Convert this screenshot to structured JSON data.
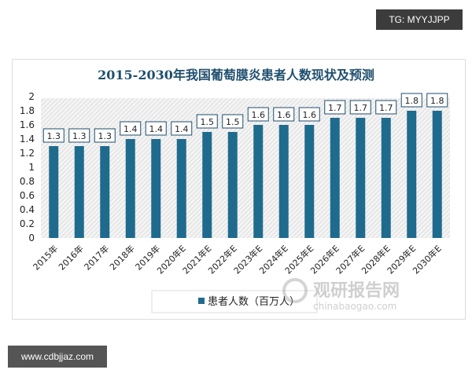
{
  "badge_top": "TG: MYYJJPP",
  "badge_bottom": "www.cdbjjaz.com",
  "watermark": {
    "name": "观研报告网",
    "url": "chinabaogao.com"
  },
  "colors": {
    "bar": "#1f6b8e",
    "title": "#1f4e6e"
  },
  "chart_data": {
    "type": "bar",
    "title": "2015-2030年我国葡萄膜炎患者人数现状及预测",
    "categories": [
      "2015年",
      "2016年",
      "2017年",
      "2018年",
      "2019年",
      "2020年E",
      "2021年E",
      "2022年E",
      "2023年E",
      "2024年E",
      "2025年E",
      "2026年E",
      "2027年E",
      "2028年E",
      "2029年E",
      "2030年E"
    ],
    "series": [
      {
        "name": "患者人数（百万人）",
        "values": [
          1.3,
          1.3,
          1.3,
          1.4,
          1.4,
          1.4,
          1.5,
          1.5,
          1.6,
          1.6,
          1.6,
          1.7,
          1.7,
          1.7,
          1.8,
          1.8
        ]
      }
    ],
    "yticks": [
      "0",
      "0.2",
      "0.4",
      "0.6",
      "0.8",
      "1",
      "1.2",
      "1.4",
      "1.6",
      "1.8",
      "2"
    ],
    "ylim": [
      0,
      2
    ],
    "legend": "bottom",
    "data_labels": true,
    "grid": false
  }
}
